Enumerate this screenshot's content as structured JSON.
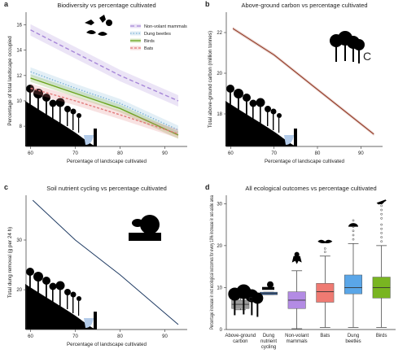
{
  "figure": {
    "background": "#ffffff"
  },
  "chart_data": [
    {
      "panel": "a",
      "type": "line",
      "title": "Biodiversity vs percentage cultivated",
      "xlabel": "Percentage of landscape cultivated",
      "ylabel": "Percentage of total landscape occupied",
      "xlim": [
        59,
        95
      ],
      "ylim": [
        6.4,
        17.0
      ],
      "xticks": [
        60,
        70,
        80,
        90
      ],
      "yticks": [
        8,
        10,
        12,
        14,
        16
      ],
      "legend_position": "top-right",
      "series": [
        {
          "name": "Non-volant mammals",
          "color": "#a686d8",
          "dash": "5,3",
          "x": [
            60,
            70,
            80,
            93
          ],
          "y": [
            15.6,
            13.8,
            12.0,
            10.0
          ],
          "band": 0.45
        },
        {
          "name": "Dung beetles",
          "color": "#7fb4d6",
          "dash": "1.5,2",
          "x": [
            60,
            70,
            80,
            93
          ],
          "y": [
            12.3,
            11.0,
            9.8,
            7.7
          ],
          "band": 0.35
        },
        {
          "name": "Birds",
          "color": "#6aa31e",
          "dash": "",
          "x": [
            60,
            70,
            80,
            93
          ],
          "y": [
            11.8,
            10.6,
            9.4,
            7.3
          ],
          "band": 0.3
        },
        {
          "name": "Bats",
          "color": "#e07a7a",
          "dash": "3,2",
          "x": [
            60,
            70,
            80,
            93
          ],
          "y": [
            11.0,
            10.0,
            8.9,
            7.4
          ],
          "band": 0.35
        }
      ]
    },
    {
      "panel": "b",
      "type": "line",
      "title": "Above-ground carbon vs percentage cultivated",
      "xlabel": "Percentage of landscape cultivated",
      "ylabel": "Total above-ground carbon (million tonnes)",
      "xlim": [
        59,
        95
      ],
      "ylim": [
        16.4,
        23.0
      ],
      "xticks": [
        60,
        70,
        80,
        90
      ],
      "yticks": [
        18,
        20,
        22
      ],
      "icon_label": "C",
      "series": [
        {
          "name": "",
          "color": "#8b2a14",
          "dash": "",
          "x": [
            60.5,
            70,
            80,
            93
          ],
          "y": [
            22.2,
            20.9,
            19.2,
            17.0
          ],
          "band": 0.08
        }
      ]
    },
    {
      "panel": "c",
      "type": "line",
      "title": "Soil nutrient cycling vs percentage cultivated",
      "xlabel": "Percentage of landscape cultivated",
      "ylabel": "Total dung removal (g per 24 h)",
      "xlim": [
        59,
        95
      ],
      "ylim": [
        12.0,
        39.0
      ],
      "xticks": [
        60,
        70,
        80,
        90
      ],
      "yticks": [
        20,
        30
      ],
      "series": [
        {
          "name": "",
          "color": "#1f3b63",
          "dash": "",
          "x": [
            60.5,
            70,
            80,
            93
          ],
          "y": [
            38.0,
            30.0,
            23.0,
            13.0
          ],
          "band": 0
        }
      ]
    },
    {
      "panel": "d",
      "type": "box",
      "title": "All ecological outcomes vs percentage cultivated",
      "ylabel": "Percentage increase in net ecological outcomes for every 10% increase in set-aside area",
      "ylim": [
        0,
        32
      ],
      "yticks": [
        0,
        10,
        20,
        30
      ],
      "categories": [
        "Above-ground carbon",
        "Dung nutrient cycling",
        "Non-volant mammals",
        "Bats",
        "Dung beetles",
        "Birds"
      ],
      "boxes": [
        {
          "q1": 5.0,
          "median": 6.0,
          "q3": 7.0,
          "whisker_low": 4.7,
          "whisker_high": 8.0,
          "outliers": [],
          "color": "#9a9a9a"
        },
        {
          "q1": 8.3,
          "median": 8.6,
          "q3": 8.9,
          "whisker_low": 8.3,
          "whisker_high": 8.9,
          "outliers": [],
          "color": "#2f5e9e"
        },
        {
          "q1": 5.0,
          "median": 7.0,
          "q3": 9.0,
          "whisker_low": 0.2,
          "whisker_high": 14.0,
          "outliers": [],
          "color": "#b38be4"
        },
        {
          "q1": 6.5,
          "median": 9.0,
          "q3": 11.0,
          "whisker_low": 0.5,
          "whisker_high": 17.5,
          "outliers": [
            18.5,
            19.3
          ],
          "color": "#ef7a72"
        },
        {
          "q1": 8.5,
          "median": 10.0,
          "q3": 13.0,
          "whisker_low": 0.5,
          "whisker_high": 20.5,
          "outliers": [
            21.5,
            22.5,
            23.5,
            24.5,
            26.0
          ],
          "color": "#5aa6e8"
        },
        {
          "q1": 7.5,
          "median": 10.0,
          "q3": 12.5,
          "whisker_low": 0.5,
          "whisker_high": 20.0,
          "outliers": [
            21.0,
            22.0,
            23.0,
            24.0,
            25.0,
            26.5,
            27.5,
            28.5,
            29.5
          ],
          "color": "#79b521"
        }
      ]
    }
  ]
}
